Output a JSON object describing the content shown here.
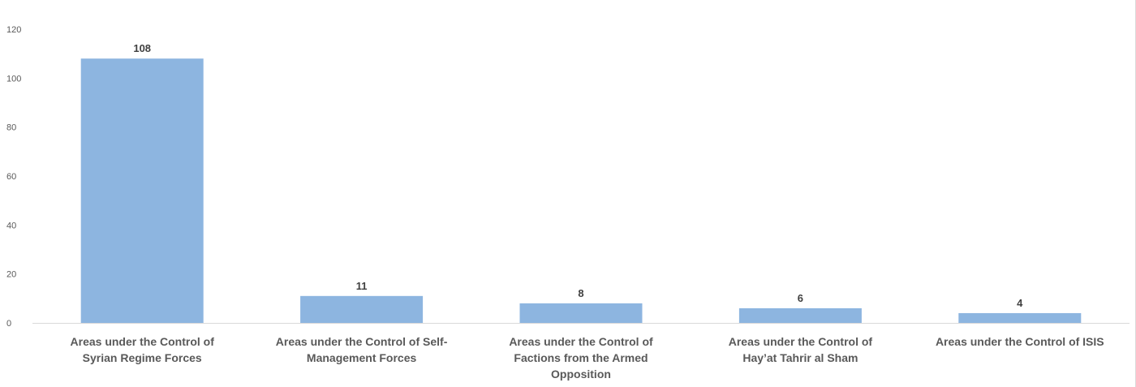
{
  "chart_data": {
    "type": "bar",
    "categories": [
      [
        "Areas under the Control of",
        "Syrian Regime Forces"
      ],
      [
        "Areas under the Control of Self-",
        "Management Forces"
      ],
      [
        "Areas under the Control of",
        "Factions from the Armed",
        "Opposition"
      ],
      [
        "Areas under the Control of",
        "Hay’at Tahrir al Sham"
      ],
      [
        "Areas under the Control of ISIS"
      ]
    ],
    "values": [
      108,
      11,
      8,
      6,
      4
    ],
    "yticks": [
      "0",
      "20",
      "40",
      "60",
      "80",
      "100",
      "120"
    ],
    "ylim": [
      0,
      120
    ],
    "grid": false,
    "bar_color": "#8db5e0",
    "axis_color": "#d9d9d9"
  }
}
